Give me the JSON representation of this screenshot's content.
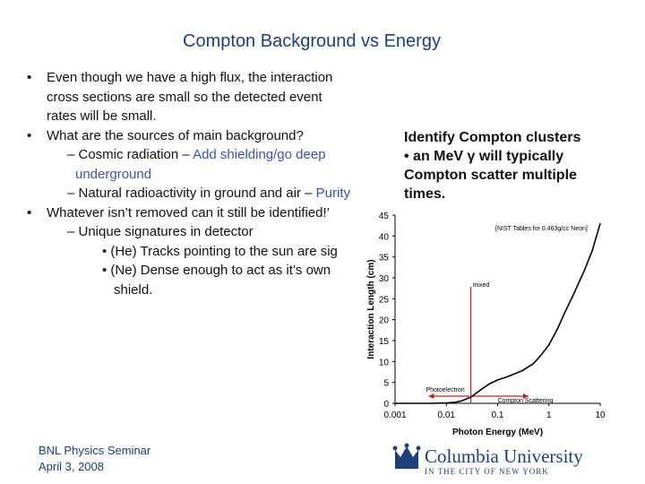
{
  "slide": {
    "title": "Compton Background vs Energy",
    "bullets": [
      "Even though we have a high flux, the interaction",
      "cross sections are small so the detected event",
      "rates will be small.",
      "What are the sources of main background?",
      "– Cosmic radiation – ",
      "Add shielding/go deep",
      "underground",
      "– Natural radioactivity in ground and air – ",
      "Purity",
      "Whatever isn’t removed can it still be identified!’",
      "– Unique signatures in detector",
      "• (He) Tracks pointing to the sun are sig",
      "• (Ne) Dense enough to act as it’s own",
      "shield."
    ],
    "bullet_marks": [
      "•",
      "•",
      "•"
    ],
    "right_note": [
      "Identify Compton clusters",
      "• an MeV γ will typically",
      "Compton scatter multiple",
      "times."
    ],
    "footer": [
      "BNL Physics Seminar",
      "April 3, 2008"
    ],
    "logo": {
      "line1": "Columbia University",
      "line2": "IN THE CITY OF NEW YORK"
    }
  },
  "chart_data": {
    "type": "line",
    "title": "",
    "xlabel": "Photon Energy (MeV)",
    "ylabel": "Interaction Length (cm)",
    "xscale": "log",
    "xlim": [
      0.001,
      10
    ],
    "ylim": [
      0,
      45
    ],
    "xticks": [
      "0.001",
      "0.01",
      "0.1",
      "1",
      "10"
    ],
    "yticks": [
      "0",
      "5",
      "10",
      "15",
      "20",
      "25",
      "30",
      "35",
      "40",
      "45"
    ],
    "legend": "[NIST Tables for 0.463g/cc Neon]",
    "annotations": [
      "mixed",
      "Photoelectron",
      "Compton Scattering"
    ],
    "series": [
      {
        "name": "Interaction length",
        "x": [
          0.001,
          0.005,
          0.01,
          0.015,
          0.02,
          0.03,
          0.04,
          0.05,
          0.07,
          0.1,
          0.15,
          0.2,
          0.3,
          0.5,
          0.7,
          1,
          1.5,
          2,
          3,
          5,
          7,
          10
        ],
        "y": [
          0.0,
          0.01,
          0.08,
          0.25,
          0.6,
          1.5,
          2.6,
          3.5,
          4.7,
          5.6,
          6.3,
          6.9,
          7.8,
          9.5,
          11.5,
          14.0,
          18.0,
          21.5,
          26.0,
          32.0,
          36.5,
          43.0
        ]
      }
    ]
  }
}
